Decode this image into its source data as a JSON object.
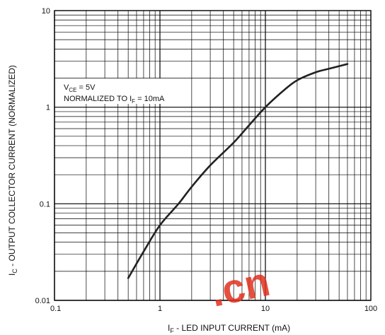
{
  "chart_data": {
    "type": "line",
    "xscale": "log",
    "yscale": "log",
    "xlim": [
      0.1,
      100
    ],
    "ylim": [
      0.01,
      10
    ],
    "grid": true,
    "x_ticks": [
      "0.1",
      "1",
      "10",
      "100"
    ],
    "y_ticks": [
      "0.01",
      "0.1",
      "1",
      "10"
    ],
    "xlabel": {
      "symbol_main": "I",
      "symbol_sub": "F",
      "text": " - LED INPUT CURRENT (mA)"
    },
    "ylabel": {
      "symbol_main": "I",
      "symbol_sub": "C",
      "text": " - OUTPUT COLLECTOR CURRENT (NORMALIZED)"
    },
    "annotations": {
      "line1": {
        "main": "V",
        "sub": "CE",
        "rest": " = 5V"
      },
      "line2": {
        "main": "NORMALIZED TO I",
        "sub": "F",
        "rest": " = 10mA"
      }
    },
    "series": [
      {
        "x": [
          0.5,
          0.7,
          1,
          1.5,
          2,
          3,
          5,
          7,
          10,
          15,
          20,
          30,
          40,
          60
        ],
        "y": [
          0.017,
          0.032,
          0.06,
          0.1,
          0.15,
          0.25,
          0.43,
          0.65,
          1.0,
          1.5,
          1.9,
          2.3,
          2.5,
          2.8
        ]
      }
    ],
    "colors": {
      "line": "#222222",
      "grid": "#000000",
      "background": "#ffffff"
    }
  },
  "watermark": {
    "text": ".cn",
    "color": "#e0301e"
  }
}
